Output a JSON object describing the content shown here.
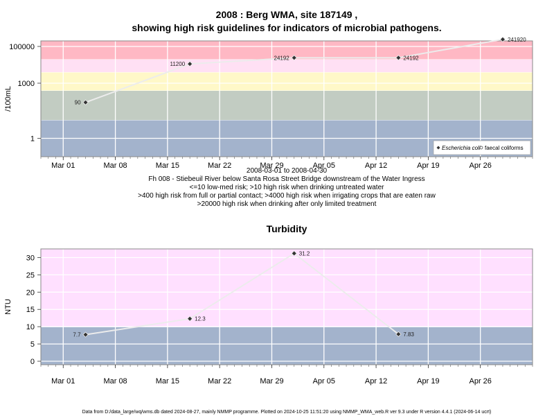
{
  "chart_data": [
    {
      "type": "line",
      "title": "2008 : Berg WMA, site 187149 ,",
      "subtitle": "showing high risk guidelines for indicators of microbial pathogens.",
      "xlabel": "2008-03-01 to 2008-04-30",
      "ylabel": "/100mL",
      "y_scale": "log",
      "ylim": [
        0.1,
        200000
      ],
      "x_ticks": [
        "Mar 01",
        "Mar 08",
        "Mar 15",
        "Mar 22",
        "Mar 29",
        "Apr 05",
        "Apr 12",
        "Apr 19",
        "Apr 26"
      ],
      "x_tick_dates": [
        "2008-03-01",
        "2008-03-08",
        "2008-03-15",
        "2008-03-22",
        "2008-03-29",
        "2008-04-05",
        "2008-04-12",
        "2008-04-19",
        "2008-04-26"
      ],
      "xlim": [
        "2008-02-27",
        "2008-05-03"
      ],
      "y_ticks": [
        1,
        1000,
        100000
      ],
      "y_tick_labels": [
        "1",
        "1000",
        "100000"
      ],
      "bands": [
        {
          "from": 0.1,
          "to": 10,
          "color": "#a3b3cc"
        },
        {
          "from": 10,
          "to": 400,
          "color": "#c2ccc2"
        },
        {
          "from": 400,
          "to": 4000,
          "color": "#fff8c8"
        },
        {
          "from": 4000,
          "to": 20000,
          "color": "#ffe0f4"
        },
        {
          "from": 20000,
          "to": 200000,
          "color": "#ffb8c4"
        }
      ],
      "series": [
        {
          "name": "Escherichia coli",
          "points": [
            {
              "x": "2008-03-04",
              "y": 90,
              "label": "90"
            },
            {
              "x": "2008-03-18",
              "y": 11200,
              "label": "11200"
            },
            {
              "x": "2008-04-01",
              "y": 24192,
              "label": "24192"
            },
            {
              "x": "2008-04-15",
              "y": 24192,
              "label": "24192"
            },
            {
              "x": "2008-04-29",
              "y": 241920,
              "label": "241920"
            }
          ]
        }
      ],
      "legend": {
        "placement": "bottom-right",
        "items": [
          {
            "label": "Escherichia coli",
            "marker": "filled-diamond",
            "italic": true
          },
          {
            "label": "faecal coliforms",
            "marker": "open-circle",
            "italic": false
          }
        ]
      },
      "notes": [
        "Fh 008 - Stiebeuil River below Santa Rosa Street Bridge downstream of the Water Ingress",
        "<=10 low-med risk; >10 high risk when drinking untreated water",
        ">400 high risk from full or partial contact; >4000 high risk when irrigating crops that are eaten raw",
        ">20000 high risk when drinking after only limited treatment"
      ]
    },
    {
      "type": "line",
      "title": "Turbidity",
      "xlabel": "",
      "ylabel": "NTU",
      "y_scale": "linear",
      "ylim": [
        -1,
        32.5
      ],
      "x_ticks": [
        "Mar 01",
        "Mar 08",
        "Mar 15",
        "Mar 22",
        "Mar 29",
        "Apr 05",
        "Apr 12",
        "Apr 19",
        "Apr 26"
      ],
      "x_tick_dates": [
        "2008-03-01",
        "2008-03-08",
        "2008-03-15",
        "2008-03-22",
        "2008-03-29",
        "2008-04-05",
        "2008-04-12",
        "2008-04-19",
        "2008-04-26"
      ],
      "xlim": [
        "2008-02-27",
        "2008-05-03"
      ],
      "y_ticks": [
        0,
        5,
        10,
        15,
        20,
        25,
        30
      ],
      "y_tick_labels": [
        "0",
        "5",
        "10",
        "15",
        "20",
        "25",
        "30"
      ],
      "bands": [
        {
          "from": -1,
          "to": 10,
          "color": "#a3b3cc"
        },
        {
          "from": 10,
          "to": 32.5,
          "color": "#ffe0ff"
        }
      ],
      "series": [
        {
          "points": [
            {
              "x": "2008-03-04",
              "y": 7.7,
              "label": "7.7",
              "label_side": "left"
            },
            {
              "x": "2008-03-18",
              "y": 12.3,
              "label": "12.3",
              "label_side": "right"
            },
            {
              "x": "2008-04-01",
              "y": 31.2,
              "label": "31.2",
              "label_side": "right"
            },
            {
              "x": "2008-04-15",
              "y": 7.83,
              "label": "7.83",
              "label_side": "right"
            }
          ]
        }
      ]
    }
  ],
  "footer": "Data from D:/data_large/wq/wms.db dated 2024-08-27, mainly NMMP programme. Plotted on 2024-10-25 11:51:20 using NMMP_WMA_web.R ver 9.3 under R version 4.4.1 (2024-06-14 ucrt)"
}
